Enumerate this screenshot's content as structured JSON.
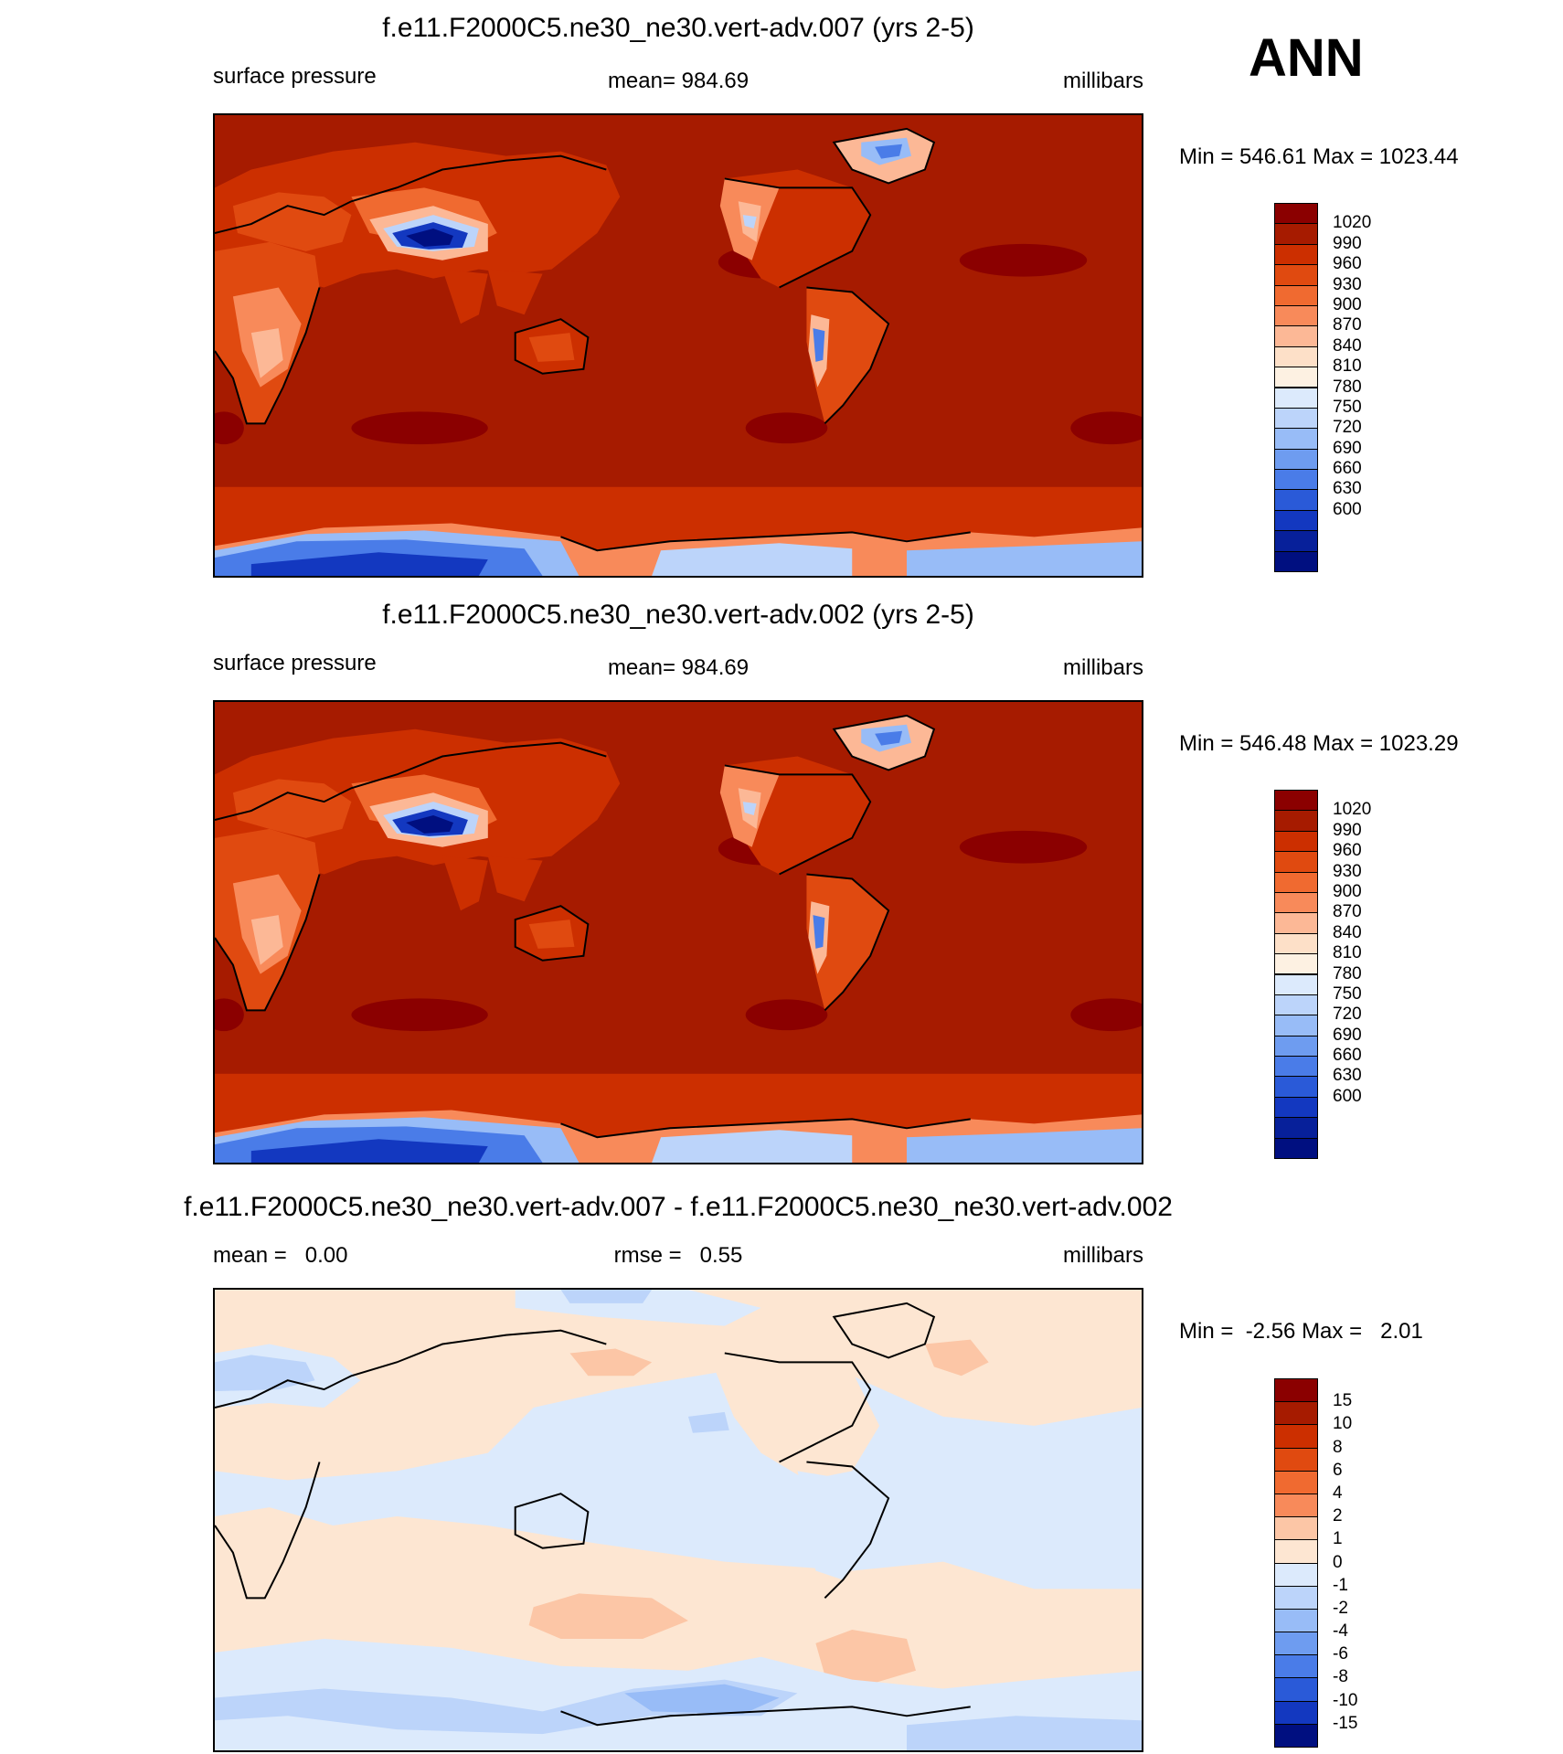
{
  "season": "ANN",
  "colors": {
    "abs_levels": [
      "#8b0000",
      "#a61b00",
      "#cc2f00",
      "#e04a10",
      "#f06a30",
      "#f88a5a",
      "#fcb896",
      "#fde0c8",
      "#fdf1e2",
      "#dceafc",
      "#bcd4fa",
      "#98bcf7",
      "#6e9cf0",
      "#4a7ce8",
      "#2a5ad8",
      "#1338c0",
      "#07209a",
      "#000f80"
    ],
    "diff_levels": [
      "#8b0000",
      "#a61b00",
      "#cc2f00",
      "#e04a10",
      "#f06a30",
      "#f88a5a",
      "#fcc6a6",
      "#fde6d2",
      "#dceafc",
      "#bcd4fa",
      "#98bcf7",
      "#6e9cf0",
      "#4a7ce8",
      "#2a5ad8",
      "#1338c0",
      "#000f80"
    ]
  },
  "panels": [
    {
      "title": "f.e11.F2000C5.ne30_ne30.vert-adv.007 (yrs 2-5)",
      "left_label": "surface pressure",
      "center_label": "mean= 984.69",
      "right_label": "millibars",
      "minmax": "Min = 546.61 Max = 1023.44",
      "colorbar_labels": [
        "1020",
        "990",
        "960",
        "930",
        "900",
        "870",
        "840",
        "810",
        "780",
        "750",
        "720",
        "690",
        "660",
        "630",
        "600"
      ]
    },
    {
      "title": "f.e11.F2000C5.ne30_ne30.vert-adv.002 (yrs 2-5)",
      "left_label": "surface pressure",
      "center_label": "mean= 984.69",
      "right_label": "millibars",
      "minmax": "Min = 546.48 Max = 1023.29",
      "colorbar_labels": [
        "1020",
        "990",
        "960",
        "930",
        "900",
        "870",
        "840",
        "810",
        "780",
        "750",
        "720",
        "690",
        "660",
        "630",
        "600"
      ]
    },
    {
      "title": "f.e11.F2000C5.ne30_ne30.vert-adv.007 - f.e11.F2000C5.ne30_ne30.vert-adv.002",
      "left_label": "mean =   0.00",
      "center_label": "rmse =   0.55",
      "right_label": "millibars",
      "minmax": "Min =  -2.56 Max =   2.01",
      "colorbar_labels": [
        "15",
        "10",
        "8",
        "6",
        "4",
        "2",
        "1",
        "0",
        "-1",
        "-2",
        "-4",
        "-6",
        "-8",
        "-10",
        "-15"
      ]
    }
  ]
}
